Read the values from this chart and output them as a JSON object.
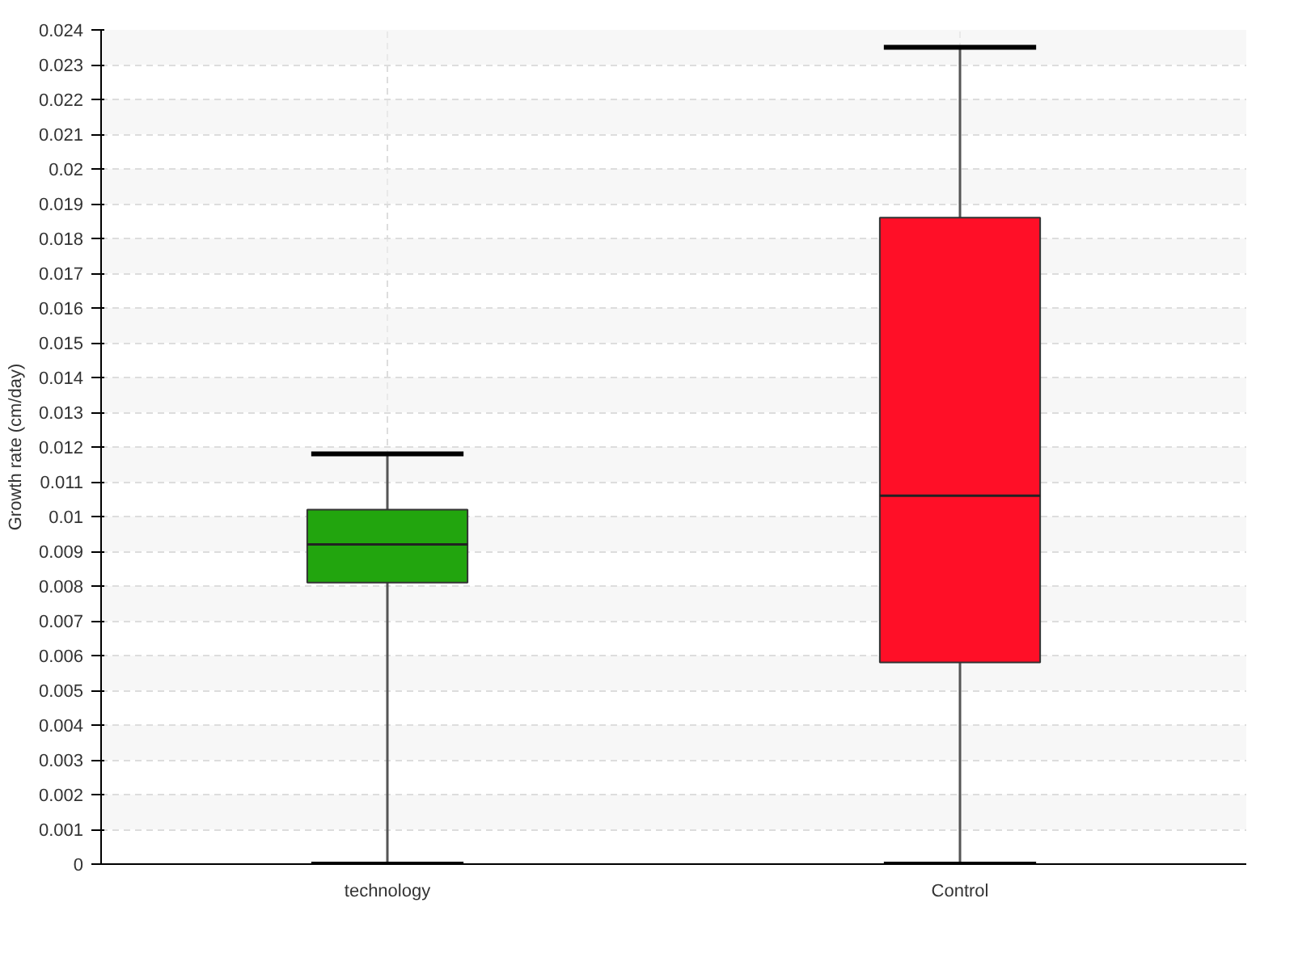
{
  "chart_data": {
    "type": "box",
    "ylabel": "Growth rate (cm/day)",
    "categories": [
      "technology",
      "Control"
    ],
    "colors": [
      "#22a50e",
      "#ff0f27"
    ],
    "boxes": [
      {
        "low": 0,
        "q1": 0.0081,
        "median": 0.0092,
        "q3": 0.0102,
        "high": 0.0118
      },
      {
        "low": 0,
        "q1": 0.0058,
        "median": 0.0106,
        "q3": 0.0186,
        "high": 0.0235
      }
    ],
    "ylim": [
      0,
      0.024
    ],
    "yticks": [
      0,
      0.001,
      0.002,
      0.003,
      0.004,
      0.005,
      0.006,
      0.007,
      0.008,
      0.009,
      0.01,
      0.011,
      0.012,
      0.013,
      0.014,
      0.015,
      0.016,
      0.017,
      0.018,
      0.019,
      0.02,
      0.021,
      0.022,
      0.023,
      0.024
    ],
    "grid": true
  }
}
